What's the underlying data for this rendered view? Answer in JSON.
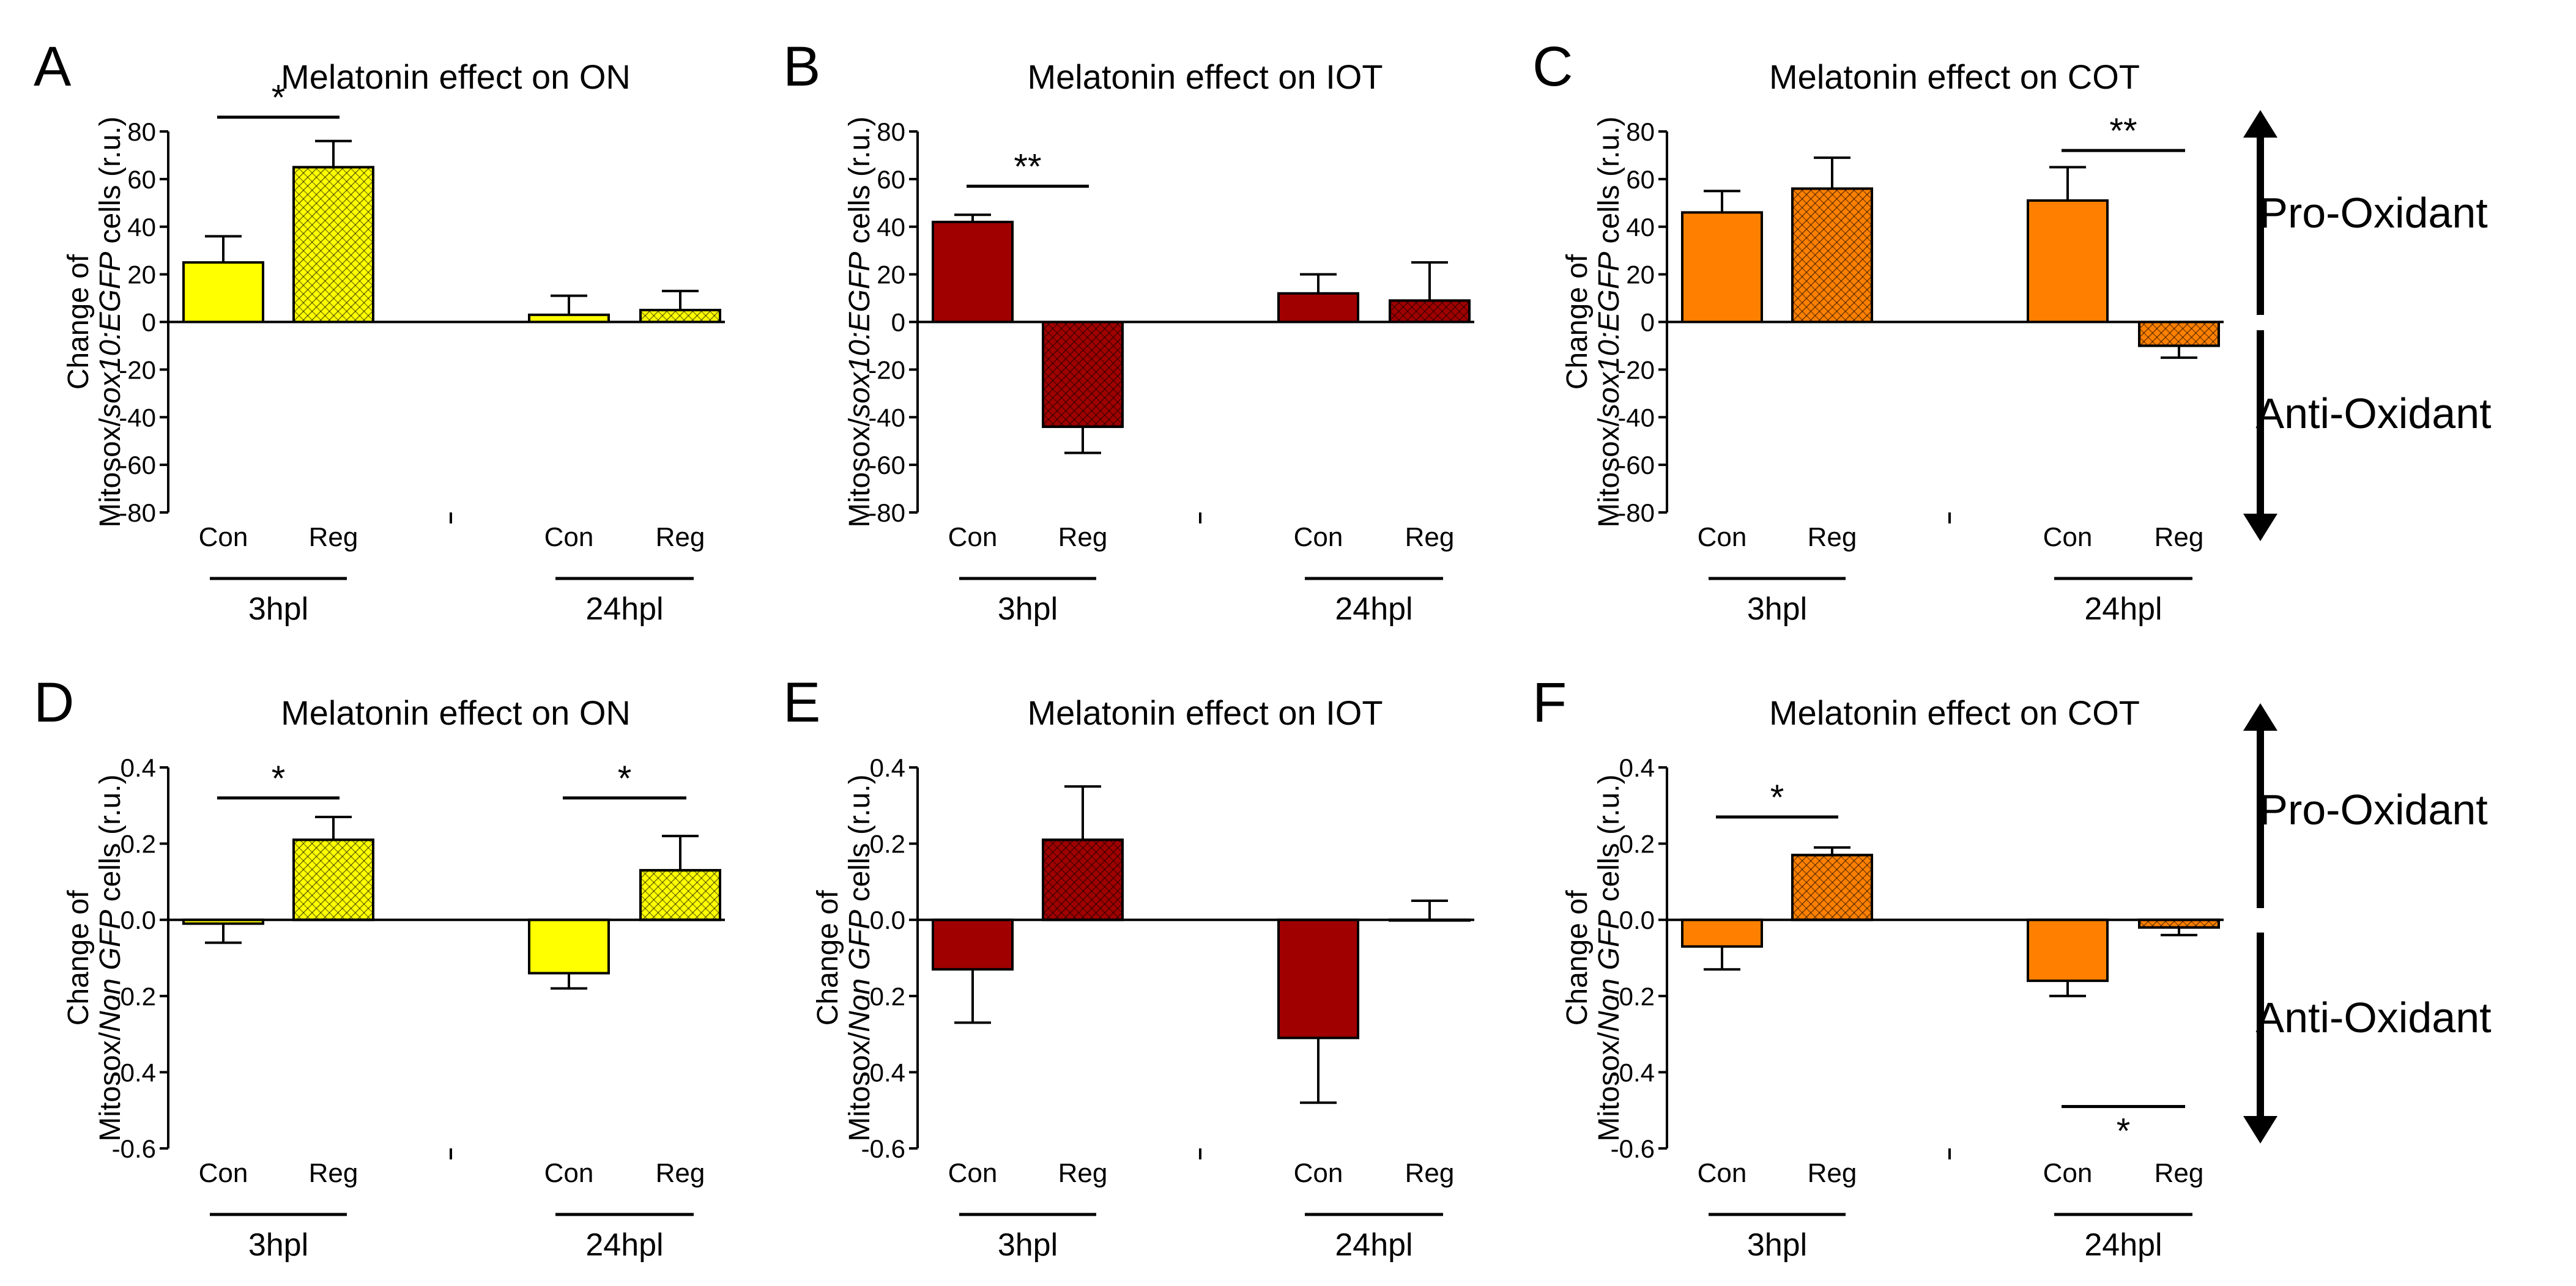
{
  "panels": [
    {
      "label": "A",
      "title": "Melatonin effect on ON",
      "ylabel_line1": "Change of",
      "ylabel_line2_pre": "Mitosox/",
      "ylabel_line2_it": "sox10:EGFP",
      "ylabel_line2_post": " cells (r.u.)",
      "color": "#ffff00",
      "dark": "#c8c800",
      "groups": [
        "3hpl",
        "24hpl"
      ],
      "categories": [
        "Con",
        "Reg",
        "Con",
        "Reg"
      ]
    },
    {
      "label": "B",
      "title": "Melatonin effect on IOT",
      "ylabel_line1": "",
      "ylabel_line2_pre": "Mitosox/",
      "ylabel_line2_it": "sox10:EGFP",
      "ylabel_line2_post": " cells (r.u.)",
      "color": "#a00000",
      "dark": "#5a0000",
      "groups": [
        "3hpl",
        "24hpl"
      ],
      "categories": [
        "Con",
        "Reg",
        "Con",
        "Reg"
      ]
    },
    {
      "label": "C",
      "title": "Melatonin effect on COT",
      "ylabel_line1": "Change of",
      "ylabel_line2_pre": "Mitosox/",
      "ylabel_line2_it": "sox10:EGFP",
      "ylabel_line2_post": " cells (r.u.)",
      "color": "#ff8000",
      "dark": "#a05000",
      "groups": [
        "3hpl",
        "24hpl"
      ],
      "categories": [
        "Con",
        "Reg",
        "Con",
        "Reg"
      ]
    },
    {
      "label": "D",
      "title": "Melatonin effect on ON",
      "ylabel_line1": "Change of",
      "ylabel_line2_pre": "Mitosox/",
      "ylabel_line2_it": "Non GFP",
      "ylabel_line2_post": " cells (r.u.)",
      "color": "#ffff00",
      "dark": "#c8c800",
      "groups": [
        "3hpl",
        "24hpl"
      ],
      "categories": [
        "Con",
        "Reg",
        "Con",
        "Reg"
      ]
    },
    {
      "label": "E",
      "title": "Melatonin effect on IOT",
      "ylabel_line1": "Change of",
      "ylabel_line2_pre": "Mitosox/",
      "ylabel_line2_it": "Non GFP",
      "ylabel_line2_post": " cells (r.u.)",
      "color": "#a00000",
      "dark": "#5a0000",
      "groups": [
        "3hpl",
        "24hpl"
      ],
      "categories": [
        "Con",
        "Reg",
        "Con",
        "Reg"
      ]
    },
    {
      "label": "F",
      "title": "Melatonin effect on COT",
      "ylabel_line1": "Change of",
      "ylabel_line2_pre": "Mitosox/",
      "ylabel_line2_it": "Non GFP",
      "ylabel_line2_post": " cells (r.u.)",
      "color": "#ff8000",
      "dark": "#a05000",
      "groups": [
        "3hpl",
        "24hpl"
      ],
      "categories": [
        "Con",
        "Reg",
        "Con",
        "Reg"
      ]
    }
  ],
  "side_labels": {
    "top": "Pro-Oxidant",
    "bottom": "Anti-Oxidant"
  },
  "chart_data": [
    {
      "panel": "A",
      "type": "bar",
      "title": "Melatonin effect on ON",
      "ylim": [
        -80,
        80
      ],
      "yticks": [
        "80",
        "60",
        "40",
        "20",
        "0",
        "-20",
        "-40",
        "-60",
        "-80"
      ],
      "ytick_values": [
        80,
        60,
        40,
        20,
        0,
        -20,
        -40,
        -60,
        -80
      ],
      "categories": [
        "Con",
        "Reg",
        "Con",
        "Reg"
      ],
      "groups": [
        "3hpl",
        "24hpl"
      ],
      "series": [
        {
          "name": "Change",
          "values": [
            25,
            65,
            3,
            5
          ],
          "errors": [
            11,
            11,
            8,
            8
          ],
          "hatched": [
            false,
            true,
            false,
            true
          ]
        }
      ],
      "significance": [
        {
          "from": 0,
          "to": 1,
          "label": "*",
          "y": 86
        }
      ]
    },
    {
      "panel": "B",
      "type": "bar",
      "title": "Melatonin effect on IOT",
      "ylim": [
        -80,
        80
      ],
      "yticks": [
        "80",
        "60",
        "40",
        "20",
        "0",
        "-20",
        "-40",
        "-60",
        "-80"
      ],
      "ytick_values": [
        80,
        60,
        40,
        20,
        0,
        -20,
        -40,
        -60,
        -80
      ],
      "categories": [
        "Con",
        "Reg",
        "Con",
        "Reg"
      ],
      "groups": [
        "3hpl",
        "24hpl"
      ],
      "series": [
        {
          "name": "Change",
          "values": [
            42,
            -44,
            12,
            9
          ],
          "errors": [
            3,
            11,
            8,
            16
          ],
          "hatched": [
            false,
            true,
            false,
            true
          ]
        }
      ],
      "significance": [
        {
          "from": 0,
          "to": 1,
          "label": "**",
          "y": 57
        }
      ]
    },
    {
      "panel": "C",
      "type": "bar",
      "title": "Melatonin effect on COT",
      "ylim": [
        -80,
        80
      ],
      "yticks": [
        "80",
        "60",
        "40",
        "20",
        "0",
        "-20",
        "-40",
        "-60",
        "-80"
      ],
      "ytick_values": [
        80,
        60,
        40,
        20,
        0,
        -20,
        -40,
        -60,
        -80
      ],
      "categories": [
        "Con",
        "Reg",
        "Con",
        "Reg"
      ],
      "groups": [
        "3hpl",
        "24hpl"
      ],
      "series": [
        {
          "name": "Change",
          "values": [
            46,
            56,
            51,
            -10
          ],
          "errors": [
            9,
            13,
            14,
            5
          ],
          "hatched": [
            false,
            true,
            false,
            true
          ]
        }
      ],
      "significance": [
        {
          "from": 2,
          "to": 3,
          "label": "**",
          "y": 72
        }
      ]
    },
    {
      "panel": "D",
      "type": "bar",
      "title": "Melatonin effect on ON",
      "ylim": [
        -0.6,
        0.4
      ],
      "yticks": [
        "0.4",
        "0.2",
        "0.0",
        "-0.2",
        "-0.4",
        "-0.6"
      ],
      "ytick_values": [
        0.4,
        0.2,
        0.0,
        -0.2,
        -0.4,
        -0.6
      ],
      "categories": [
        "Con",
        "Reg",
        "Con",
        "Reg"
      ],
      "groups": [
        "3hpl",
        "24hpl"
      ],
      "series": [
        {
          "name": "Change",
          "values": [
            -0.01,
            0.21,
            -0.14,
            0.13
          ],
          "errors": [
            0.05,
            0.06,
            0.04,
            0.09
          ],
          "hatched": [
            false,
            true,
            false,
            true
          ]
        }
      ],
      "significance": [
        {
          "from": 0,
          "to": 1,
          "label": "*",
          "y": 0.32
        },
        {
          "from": 2,
          "to": 3,
          "label": "*",
          "y": 0.32
        }
      ]
    },
    {
      "panel": "E",
      "type": "bar",
      "title": "Melatonin effect on IOT",
      "ylim": [
        -0.6,
        0.4
      ],
      "yticks": [
        "0.4",
        "0.2",
        "0.0",
        "-0.2",
        "-0.4",
        "-0.6"
      ],
      "ytick_values": [
        0.4,
        0.2,
        0.0,
        -0.2,
        -0.4,
        -0.6
      ],
      "categories": [
        "Con",
        "Reg",
        "Con",
        "Reg"
      ],
      "groups": [
        "3hpl",
        "24hpl"
      ],
      "series": [
        {
          "name": "Change",
          "values": [
            -0.13,
            0.21,
            -0.31,
            0.0
          ],
          "errors": [
            0.14,
            0.14,
            0.17,
            0.05
          ],
          "hatched": [
            false,
            true,
            false,
            true
          ]
        }
      ],
      "significance": []
    },
    {
      "panel": "F",
      "type": "bar",
      "title": "Melatonin effect on COT",
      "ylim": [
        -0.6,
        0.4
      ],
      "yticks": [
        "0.4",
        "0.2",
        "0.0",
        "-0.2",
        "-0.4",
        "-0.6"
      ],
      "ytick_values": [
        0.4,
        0.2,
        0.0,
        -0.2,
        -0.4,
        -0.6
      ],
      "categories": [
        "Con",
        "Reg",
        "Con",
        "Reg"
      ],
      "groups": [
        "3hpl",
        "24hpl"
      ],
      "series": [
        {
          "name": "Change",
          "values": [
            -0.07,
            0.17,
            -0.16,
            -0.02
          ],
          "errors": [
            0.06,
            0.02,
            0.04,
            0.02
          ],
          "hatched": [
            false,
            true,
            false,
            true
          ]
        }
      ],
      "significance": [
        {
          "from": 0,
          "to": 1,
          "label": "*",
          "y": 0.27
        },
        {
          "from": 2,
          "to": 3,
          "label": "*",
          "y": -0.49,
          "below": true
        }
      ]
    }
  ]
}
